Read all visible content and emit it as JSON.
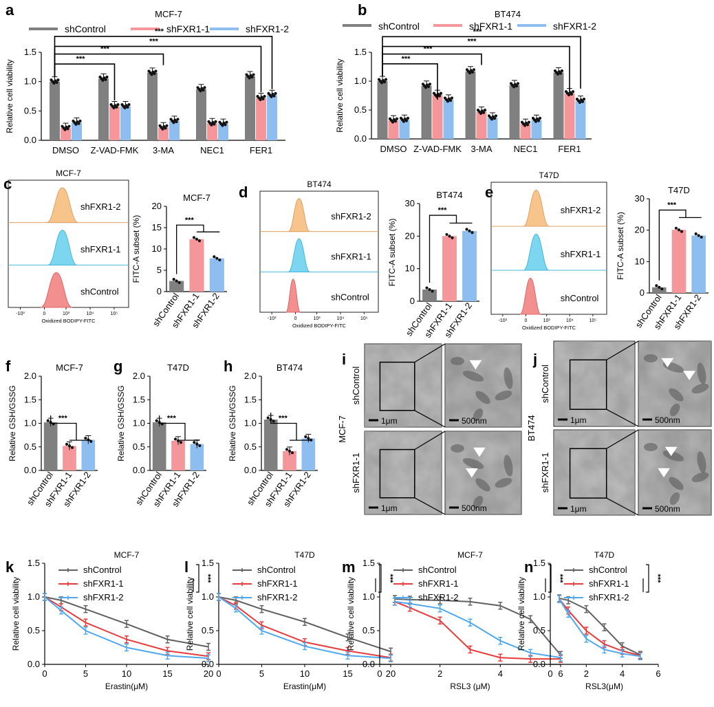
{
  "colors": {
    "shControl": "#808080",
    "shFXR1_1": "#F4969A",
    "shFXR1_2": "#8EBEF0",
    "line_shFXR1_1": "#E83A3A",
    "line_shFXR1_2": "#4EA8EE",
    "line_shControl": "#606060"
  },
  "sig": "***",
  "panels": {
    "a": {
      "label": "a",
      "title": "MCF-7",
      "ylabel": "Relative cell viability",
      "legend": [
        "shControl",
        "shFXR1-1",
        "shFXR1-2"
      ],
      "chart_data": {
        "type": "bar",
        "categories": [
          "DMSO",
          "Z-VAD-FMK",
          "3-MA",
          "NEC1",
          "FER1"
        ],
        "series": [
          {
            "name": "shControl",
            "values": [
              1.0,
              1.05,
              1.15,
              0.87,
              1.09
            ]
          },
          {
            "name": "shFXR1-1",
            "values": [
              0.21,
              0.58,
              0.22,
              0.29,
              0.72
            ]
          },
          {
            "name": "shFXR1-2",
            "values": [
              0.3,
              0.58,
              0.33,
              0.28,
              0.77
            ]
          }
        ],
        "ylim": [
          0,
          1.5
        ],
        "yticks": [
          "0.0",
          "0.5",
          "1.0",
          "1.5"
        ]
      }
    },
    "b": {
      "label": "b",
      "title": "BT474",
      "ylabel": "Relative cell viability",
      "legend": [
        "shControl",
        "shFXR1-1",
        "shFXR1-2"
      ],
      "chart_data": {
        "type": "bar",
        "categories": [
          "DMSO",
          "Z-VAD-FMK",
          "3-MA",
          "NEC1",
          "FER1"
        ],
        "series": [
          {
            "name": "shControl",
            "values": [
              1.0,
              0.92,
              1.17,
              0.93,
              1.15
            ]
          },
          {
            "name": "shFXR1-1",
            "values": [
              0.32,
              0.76,
              0.47,
              0.26,
              0.79
            ]
          },
          {
            "name": "shFXR1-2",
            "values": [
              0.33,
              0.68,
              0.37,
              0.33,
              0.66
            ]
          }
        ],
        "ylim": [
          0,
          1.5
        ],
        "yticks": [
          "0.0",
          "0.5",
          "1.0",
          "1.5"
        ]
      }
    },
    "c": {
      "label": "c",
      "flow_title": "MCF-7",
      "flow_xlabel": "Oxidized BODIPY-FITC",
      "flow_labels": [
        "shFXR1-2",
        "shFXR1-1",
        "shControl"
      ],
      "flow_ticks": [
        "-10³",
        "0",
        "10³",
        "10⁴",
        "10⁵"
      ],
      "title": "MCF-7",
      "ylabel": "FITC-A subset (%)",
      "chart_data": {
        "type": "bar",
        "categories": [
          "shControl",
          "shFXR1-1",
          "shFXR1-2"
        ],
        "values": [
          2.5,
          12.3,
          7.8
        ],
        "ylim": [
          0,
          20
        ],
        "yticks": [
          "0",
          "5",
          "10",
          "15",
          "20"
        ]
      }
    },
    "d": {
      "label": "d",
      "flow_title": "BT474",
      "flow_xlabel": "Oxidized BODIPY-FITC",
      "flow_labels": [
        "shFXR1-2",
        "shFXR1-1",
        "shControl"
      ],
      "flow_ticks": [
        "-10³",
        "0",
        "10³",
        "10⁴",
        "10⁵"
      ],
      "title": "BT474",
      "ylabel": "FITC-A subset (%)",
      "chart_data": {
        "type": "bar",
        "categories": [
          "shControl",
          "shFXR1-1",
          "shFXR1-2"
        ],
        "values": [
          3.6,
          20.0,
          21.6
        ],
        "ylim": [
          0,
          30
        ],
        "yticks": [
          "0",
          "10",
          "20",
          "30"
        ]
      }
    },
    "e": {
      "label": "e",
      "flow_title": "T47D",
      "flow_xlabel": "Oxidized BODIPY-FITC",
      "flow_labels": [
        "shFXR1-2",
        "shFXR1-1",
        "shControl"
      ],
      "flow_ticks": [
        "-10³",
        "0",
        "10³",
        "10⁴",
        "10⁵"
      ],
      "title": "T47D",
      "ylabel": "FITC-A subset (%)",
      "chart_data": {
        "type": "bar",
        "categories": [
          "shControl",
          "shFXR1-1",
          "shFXR1-2"
        ],
        "values": [
          1.8,
          20.1,
          18.3
        ],
        "ylim": [
          0,
          30
        ],
        "yticks": [
          "0",
          "10",
          "20",
          "30"
        ]
      }
    },
    "f": {
      "label": "f",
      "title": "MCF-7",
      "ylabel": "Relative GSH/GSSG",
      "chart_data": {
        "type": "bar",
        "categories": [
          "shControl",
          "shFXR1-1",
          "shFXR1-2"
        ],
        "values": [
          1.02,
          0.52,
          0.65
        ],
        "ylim": [
          0,
          2.0
        ],
        "yticks": [
          "0.0",
          "0.5",
          "1.0",
          "1.5",
          "2.0"
        ]
      }
    },
    "g": {
      "label": "g",
      "title": "T47D",
      "ylabel": "Relative GSH/GSSG",
      "chart_data": {
        "type": "bar",
        "categories": [
          "shControl",
          "shFXR1-1",
          "shFXR1-2"
        ],
        "values": [
          1.02,
          0.63,
          0.56
        ],
        "ylim": [
          0,
          2.0
        ],
        "yticks": [
          "0.0",
          "0.5",
          "1.0",
          "1.5",
          "2.0"
        ]
      }
    },
    "h": {
      "label": "h",
      "title": "BT474",
      "ylabel": "Relative GSH/GSSG",
      "chart_data": {
        "type": "bar",
        "categories": [
          "shControl",
          "shFXR1-1",
          "shFXR1-2"
        ],
        "values": [
          1.08,
          0.41,
          0.68
        ],
        "ylim": [
          0,
          2.0
        ],
        "yticks": [
          "0.0",
          "0.5",
          "1.0",
          "1.5",
          "2.0"
        ]
      }
    },
    "i": {
      "label": "i",
      "cell_line": "MCF-7",
      "rows": [
        "shControl",
        "shFXR1-1"
      ],
      "scale_low": "1μm",
      "scale_high": "500nm"
    },
    "j": {
      "label": "j",
      "cell_line": "BT474",
      "rows": [
        "shControl",
        "shFXR1-1"
      ],
      "scale_low": "1μm",
      "scale_high": "500nm"
    },
    "k": {
      "label": "k",
      "title": "MCF-7",
      "ylabel": "Relative cell viability",
      "xlabel": "Erastin(μM)",
      "legend": [
        "shControl",
        "shFXR1-1",
        "shFXR1-2"
      ],
      "chart_data": {
        "type": "line",
        "xlim": [
          0,
          20
        ],
        "ylim": [
          0,
          1.5
        ],
        "xticks": [
          "0",
          "5",
          "10",
          "15",
          "20"
        ],
        "yticks": [
          "0.0",
          "0.5",
          "1.0",
          "1.5"
        ],
        "x": [
          0,
          2,
          5,
          10,
          15,
          20
        ],
        "series": [
          {
            "name": "shControl",
            "values": [
              1.0,
              0.95,
              0.82,
              0.6,
              0.37,
              0.26
            ]
          },
          {
            "name": "shFXR1-1",
            "values": [
              1.0,
              0.85,
              0.62,
              0.37,
              0.2,
              0.12
            ]
          },
          {
            "name": "shFXR1-2",
            "values": [
              1.0,
              0.8,
              0.5,
              0.25,
              0.13,
              0.09
            ]
          }
        ]
      }
    },
    "l": {
      "label": "l",
      "title": "T47D",
      "ylabel": "Relative cell viability",
      "xlabel": "Erastin(μM)",
      "legend": [
        "shControl",
        "shFXR1-1",
        "shFXR1-2"
      ],
      "chart_data": {
        "type": "line",
        "xlim": [
          0,
          20
        ],
        "ylim": [
          0,
          1.5
        ],
        "xticks": [
          "0",
          "5",
          "10",
          "15",
          "20"
        ],
        "yticks": [
          "0.0",
          "0.5",
          "1.0",
          "1.5"
        ],
        "x": [
          0,
          2,
          5,
          10,
          15,
          20
        ],
        "series": [
          {
            "name": "shControl",
            "values": [
              1.0,
              0.95,
              0.82,
              0.63,
              0.4,
              0.19
            ]
          },
          {
            "name": "shFXR1-1",
            "values": [
              1.0,
              0.87,
              0.58,
              0.33,
              0.2,
              0.1
            ]
          },
          {
            "name": "shFXR1-2",
            "values": [
              1.0,
              0.83,
              0.5,
              0.27,
              0.13,
              0.09
            ]
          }
        ]
      }
    },
    "m": {
      "label": "m",
      "title": "MCF-7",
      "ylabel": "Relative cell viability",
      "xlabel": "RSL3 (μM)",
      "legend": [
        "shControl",
        "shFXR1-1",
        "shFXR1-2"
      ],
      "chart_data": {
        "type": "line",
        "xlim": [
          0,
          6
        ],
        "ylim": [
          0,
          1.5
        ],
        "xticks": [
          "0",
          "2",
          "4",
          "6"
        ],
        "yticks": [
          "0.0",
          "0.5",
          "1.0",
          "1.5"
        ],
        "x": [
          0.5,
          1,
          2,
          3,
          4,
          5,
          6
        ],
        "series": [
          {
            "name": "shControl",
            "values": [
              0.97,
              0.96,
              0.95,
              0.93,
              0.87,
              0.67,
              0.14
            ]
          },
          {
            "name": "shFXR1-1",
            "values": [
              0.93,
              0.84,
              0.65,
              0.22,
              0.1,
              0.08,
              0.08
            ]
          },
          {
            "name": "shFXR1-2",
            "values": [
              0.93,
              0.9,
              0.83,
              0.62,
              0.35,
              0.17,
              0.1
            ]
          }
        ]
      }
    },
    "n": {
      "label": "n",
      "title": "T47D",
      "ylabel": "Relative cell viability",
      "xlabel": "RSL3(μM)",
      "legend": [
        "shControl",
        "shFXR1-1",
        "shFXR1-2"
      ],
      "chart_data": {
        "type": "line",
        "xlim": [
          0,
          6
        ],
        "ylim": [
          0,
          1.5
        ],
        "xticks": [
          "0",
          "2",
          "4",
          "6"
        ],
        "yticks": [
          "0.0",
          "0.5",
          "1.0",
          "1.5"
        ],
        "x": [
          0.5,
          1,
          2,
          3,
          4,
          5
        ],
        "series": [
          {
            "name": "shControl",
            "values": [
              0.98,
              0.95,
              0.82,
              0.55,
              0.27,
              0.14
            ]
          },
          {
            "name": "shFXR1-1",
            "values": [
              0.97,
              0.8,
              0.5,
              0.3,
              0.2,
              0.13
            ]
          },
          {
            "name": "shFXR1-2",
            "values": [
              0.97,
              0.75,
              0.38,
              0.22,
              0.16,
              0.12
            ]
          }
        ]
      }
    }
  }
}
